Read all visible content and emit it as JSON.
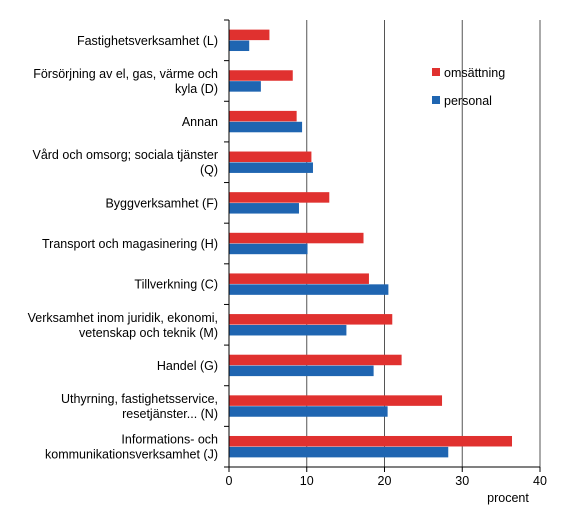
{
  "chart_data": {
    "type": "bar",
    "orientation": "horizontal",
    "categories": [
      "Fastighetsverksamhet (L)",
      "Försörjning av el, gas, värme och kyla (D)",
      "Annan",
      "Vård och omsorg; sociala tjänster (Q)",
      "Byggverksamhet (F)",
      "Transport och magasinering (H)",
      "Tillverkning (C)",
      "Verksamhet inom juridik, ekonomi, vetenskap och teknik (M)",
      "Handel (G)",
      "Uthyrning, fastighetsservice, resetjänster... (N)",
      "Informations- och kommunikationsverksamhet (J)"
    ],
    "category_lines": [
      [
        "Fastighetsverksamhet (L)"
      ],
      [
        "Försörjning av el, gas, värme och",
        "kyla (D)"
      ],
      [
        "Annan"
      ],
      [
        "Vård och omsorg; sociala tjänster",
        "(Q)"
      ],
      [
        "Byggverksamhet (F)"
      ],
      [
        "Transport och magasinering (H)"
      ],
      [
        "Tillverkning (C)"
      ],
      [
        "Verksamhet inom juridik, ekonomi,",
        "vetenskap och teknik (M)"
      ],
      [
        "Handel (G)"
      ],
      [
        "Uthyrning, fastighetsservice,",
        "resetjänster... (N)"
      ],
      [
        "Informations- och",
        "kommunikationsverksamhet (J)"
      ]
    ],
    "series": [
      {
        "name": "omsättning",
        "color": "#e0312f",
        "values": [
          5.2,
          8.2,
          8.7,
          10.6,
          12.9,
          17.3,
          18.0,
          21.0,
          22.2,
          27.4,
          36.4
        ]
      },
      {
        "name": "personal",
        "color": "#1f65b1",
        "values": [
          2.6,
          4.1,
          9.4,
          10.8,
          9.0,
          10.1,
          20.5,
          15.1,
          18.6,
          20.4,
          28.2
        ]
      }
    ],
    "xlim": [
      0,
      40
    ],
    "xticks": [
      0,
      10,
      20,
      30,
      40
    ],
    "xlabel": "procent",
    "ylabel": "",
    "title": "",
    "grid": "vertical",
    "legend_position": "top-right"
  }
}
